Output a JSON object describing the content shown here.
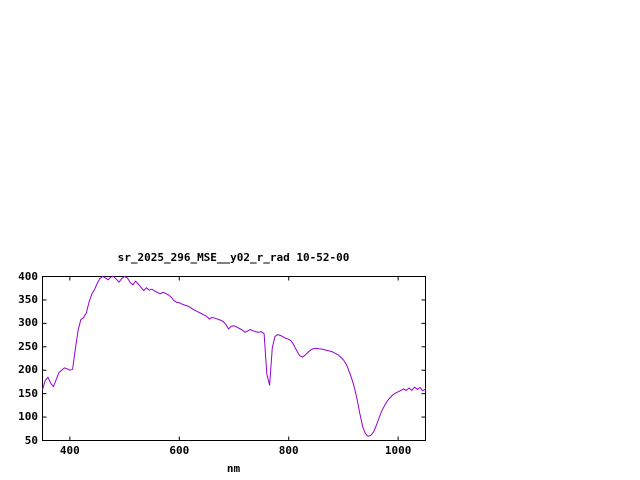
{
  "chart_data": {
    "type": "line",
    "title": "sr_2025_296_MSE__y02_r_rad 10-52-00",
    "xlabel": "nm",
    "ylabel": "",
    "xlim": [
      350,
      1050
    ],
    "ylim": [
      50,
      400
    ],
    "x_ticks": [
      400,
      600,
      800,
      1000
    ],
    "y_ticks": [
      50,
      100,
      150,
      200,
      250,
      300,
      350,
      400
    ],
    "grid": false,
    "legend": "none",
    "line_color": "#9400d3",
    "axis_color": "#000000",
    "series": [
      {
        "points": [
          [
            350,
            158
          ],
          [
            355,
            178
          ],
          [
            360,
            185
          ],
          [
            365,
            172
          ],
          [
            370,
            165
          ],
          [
            375,
            180
          ],
          [
            380,
            195
          ],
          [
            385,
            200
          ],
          [
            390,
            205
          ],
          [
            395,
            203
          ],
          [
            400,
            200
          ],
          [
            405,
            202
          ],
          [
            410,
            245
          ],
          [
            415,
            285
          ],
          [
            420,
            308
          ],
          [
            425,
            312
          ],
          [
            430,
            322
          ],
          [
            435,
            345
          ],
          [
            440,
            362
          ],
          [
            445,
            372
          ],
          [
            450,
            385
          ],
          [
            455,
            396
          ],
          [
            460,
            400
          ],
          [
            465,
            397
          ],
          [
            470,
            393
          ],
          [
            475,
            399
          ],
          [
            480,
            400
          ],
          [
            485,
            394
          ],
          [
            490,
            388
          ],
          [
            495,
            396
          ],
          [
            500,
            400
          ],
          [
            505,
            397
          ],
          [
            510,
            388
          ],
          [
            515,
            382
          ],
          [
            520,
            390
          ],
          [
            525,
            384
          ],
          [
            530,
            377
          ],
          [
            535,
            370
          ],
          [
            540,
            376
          ],
          [
            545,
            371
          ],
          [
            550,
            373
          ],
          [
            555,
            369
          ],
          [
            560,
            366
          ],
          [
            565,
            363
          ],
          [
            570,
            366
          ],
          [
            575,
            364
          ],
          [
            580,
            361
          ],
          [
            585,
            356
          ],
          [
            590,
            349
          ],
          [
            595,
            345
          ],
          [
            600,
            344
          ],
          [
            605,
            341
          ],
          [
            610,
            339
          ],
          [
            615,
            337
          ],
          [
            620,
            334
          ],
          [
            625,
            330
          ],
          [
            630,
            327
          ],
          [
            635,
            324
          ],
          [
            640,
            321
          ],
          [
            645,
            318
          ],
          [
            650,
            315
          ],
          [
            655,
            309
          ],
          [
            660,
            313
          ],
          [
            665,
            311
          ],
          [
            670,
            309
          ],
          [
            675,
            307
          ],
          [
            680,
            304
          ],
          [
            685,
            298
          ],
          [
            690,
            288
          ],
          [
            695,
            294
          ],
          [
            700,
            295
          ],
          [
            705,
            292
          ],
          [
            710,
            289
          ],
          [
            715,
            286
          ],
          [
            720,
            281
          ],
          [
            725,
            284
          ],
          [
            730,
            287
          ],
          [
            735,
            284
          ],
          [
            740,
            282
          ],
          [
            745,
            281
          ],
          [
            750,
            282
          ],
          [
            755,
            278
          ],
          [
            760,
            192
          ],
          [
            765,
            168
          ],
          [
            770,
            248
          ],
          [
            775,
            272
          ],
          [
            780,
            276
          ],
          [
            785,
            274
          ],
          [
            790,
            271
          ],
          [
            795,
            268
          ],
          [
            800,
            266
          ],
          [
            805,
            262
          ],
          [
            810,
            252
          ],
          [
            815,
            241
          ],
          [
            820,
            231
          ],
          [
            825,
            228
          ],
          [
            830,
            232
          ],
          [
            835,
            238
          ],
          [
            840,
            243
          ],
          [
            845,
            246
          ],
          [
            850,
            247
          ],
          [
            855,
            246
          ],
          [
            860,
            245
          ],
          [
            865,
            244
          ],
          [
            870,
            242
          ],
          [
            875,
            241
          ],
          [
            880,
            239
          ],
          [
            885,
            236
          ],
          [
            890,
            233
          ],
          [
            895,
            228
          ],
          [
            900,
            222
          ],
          [
            905,
            213
          ],
          [
            910,
            199
          ],
          [
            915,
            183
          ],
          [
            920,
            163
          ],
          [
            925,
            138
          ],
          [
            930,
            108
          ],
          [
            935,
            80
          ],
          [
            940,
            65
          ],
          [
            945,
            59
          ],
          [
            950,
            61
          ],
          [
            955,
            68
          ],
          [
            960,
            82
          ],
          [
            965,
            98
          ],
          [
            970,
            113
          ],
          [
            975,
            124
          ],
          [
            980,
            134
          ],
          [
            985,
            141
          ],
          [
            990,
            147
          ],
          [
            995,
            151
          ],
          [
            1000,
            154
          ],
          [
            1005,
            157
          ],
          [
            1010,
            160
          ],
          [
            1015,
            157
          ],
          [
            1020,
            162
          ],
          [
            1025,
            157
          ],
          [
            1030,
            164
          ],
          [
            1035,
            159
          ],
          [
            1040,
            163
          ],
          [
            1045,
            156
          ],
          [
            1050,
            160
          ]
        ]
      }
    ]
  }
}
